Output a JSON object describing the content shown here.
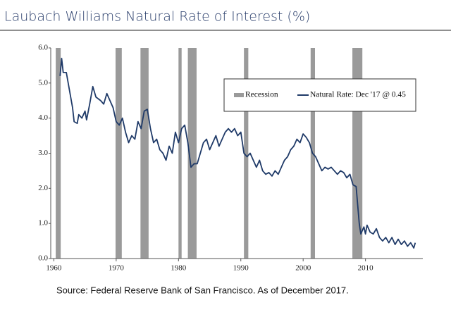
{
  "chart_data": {
    "type": "line",
    "title": "Laubach Williams Natural Rate of Interest (%)",
    "source": "Source: Federal Reserve Bank of San Francisco. As of December 2017.",
    "xlim": [
      1959.5,
      2019.2
    ],
    "ylim": [
      0,
      6
    ],
    "xticks": [
      1960,
      1970,
      1980,
      1990,
      2000,
      2010
    ],
    "yticks": [
      {
        "value": 0,
        "label": "0.0"
      },
      {
        "value": 1,
        "label": "1.0"
      },
      {
        "value": 2,
        "label": "2.0"
      },
      {
        "value": 3,
        "label": "3.0"
      },
      {
        "value": 4,
        "label": "4.0"
      },
      {
        "value": 5,
        "label": "5.0"
      },
      {
        "value": 6,
        "label": "6.0"
      }
    ],
    "recessions": {
      "name": "Recession",
      "color": "#9a9a9a",
      "spans": [
        [
          1960.3,
          1961.1
        ],
        [
          1969.9,
          1970.9
        ],
        [
          1973.9,
          1975.2
        ],
        [
          1980.0,
          1980.5
        ],
        [
          1981.5,
          1982.9
        ],
        [
          1990.5,
          1991.2
        ],
        [
          2001.2,
          2001.9
        ],
        [
          2007.9,
          2009.5
        ]
      ]
    },
    "series": [
      {
        "name": "Natural Rate: Dec '17 @ 0.45",
        "color": "#1f3a68",
        "x": [
          1961.0,
          1961.25,
          1961.5,
          1962,
          1962.5,
          1963,
          1963.25,
          1963.75,
          1964,
          1964.5,
          1965,
          1965.25,
          1965.75,
          1966.25,
          1966.75,
          1967.5,
          1968,
          1968.5,
          1969,
          1969.5,
          1970,
          1970.5,
          1971,
          1971.5,
          1972,
          1972.5,
          1973,
          1973.5,
          1974,
          1974.5,
          1975,
          1975.5,
          1976,
          1976.5,
          1977,
          1977.5,
          1978,
          1978.5,
          1979,
          1979.5,
          1980,
          1980.5,
          1981,
          1981.5,
          1982,
          1982.5,
          1983,
          1983.5,
          1984,
          1984.5,
          1985,
          1985.5,
          1986,
          1986.5,
          1987,
          1987.5,
          1988,
          1988.5,
          1989,
          1989.5,
          1990,
          1990.5,
          1991,
          1991.5,
          1992,
          1992.5,
          1993,
          1993.5,
          1994,
          1994.5,
          1995,
          1995.5,
          1996,
          1996.5,
          1997,
          1997.5,
          1998,
          1998.5,
          1999,
          1999.5,
          2000,
          2000.5,
          2001,
          2001.5,
          2002,
          2002.5,
          2003,
          2003.5,
          2004,
          2004.5,
          2005,
          2005.5,
          2006,
          2006.5,
          2007,
          2007.5,
          2008,
          2008.5,
          2009,
          2009.25,
          2009.75,
          2010,
          2010.25,
          2010.75,
          2011.25,
          2011.75,
          2012.25,
          2012.75,
          2013.25,
          2013.75,
          2014.25,
          2014.75,
          2015.25,
          2015.75,
          2016.25,
          2016.75,
          2017.25,
          2017.75,
          2017.99
        ],
        "values": [
          5.2,
          5.7,
          5.3,
          5.3,
          4.8,
          4.3,
          3.9,
          3.85,
          4.1,
          4.0,
          4.2,
          3.95,
          4.4,
          4.9,
          4.6,
          4.5,
          4.4,
          4.7,
          4.5,
          4.3,
          3.9,
          3.8,
          4.0,
          3.6,
          3.3,
          3.5,
          3.4,
          3.9,
          3.7,
          4.2,
          4.25,
          3.7,
          3.3,
          3.4,
          3.1,
          3.0,
          2.8,
          3.2,
          3.0,
          3.6,
          3.3,
          3.7,
          3.8,
          3.3,
          2.6,
          2.7,
          2.7,
          3.0,
          3.3,
          3.4,
          3.1,
          3.3,
          3.5,
          3.2,
          3.4,
          3.6,
          3.7,
          3.6,
          3.7,
          3.5,
          3.6,
          3.0,
          2.9,
          3.0,
          2.8,
          2.6,
          2.8,
          2.5,
          2.4,
          2.45,
          2.35,
          2.5,
          2.4,
          2.6,
          2.8,
          2.9,
          3.1,
          3.2,
          3.4,
          3.3,
          3.55,
          3.45,
          3.3,
          3.0,
          2.9,
          2.7,
          2.5,
          2.6,
          2.55,
          2.6,
          2.5,
          2.4,
          2.5,
          2.45,
          2.3,
          2.4,
          2.1,
          2.05,
          1.0,
          0.7,
          0.9,
          0.7,
          0.95,
          0.75,
          0.7,
          0.85,
          0.6,
          0.5,
          0.6,
          0.45,
          0.6,
          0.4,
          0.55,
          0.4,
          0.5,
          0.35,
          0.45,
          0.3,
          0.45
        ]
      }
    ]
  }
}
